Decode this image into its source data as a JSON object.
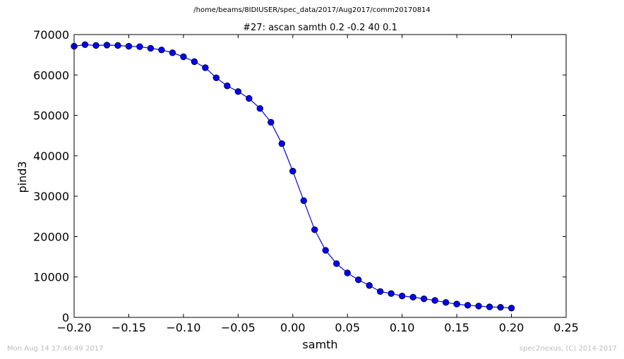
{
  "header": {
    "path": "/home/beams/8IDIUSER/spec_data/2017/Aug2017/comm20170814"
  },
  "footer": {
    "timestamp": "Mon Aug 14 17:46:49 2017",
    "credit": "spec2nexus, (C) 2014-2017"
  },
  "colors": {
    "series": "#0000ff",
    "axes": "#000000",
    "footer_text": "#bdbdbd"
  },
  "chart_data": {
    "type": "line",
    "title": "#27: ascan  samth 0.2 -0.2  40 0.1",
    "xlabel": "samth",
    "ylabel": "pind3",
    "xlim": [
      -0.2,
      0.25
    ],
    "ylim": [
      0,
      70000
    ],
    "grid": false,
    "xticks": [
      "−0.20",
      "−0.15",
      "−0.10",
      "−0.05",
      "0.00",
      "0.05",
      "0.10",
      "0.15",
      "0.20",
      "0.25"
    ],
    "yticks": [
      "0",
      "10000",
      "20000",
      "30000",
      "40000",
      "50000",
      "60000",
      "70000"
    ],
    "series": [
      {
        "marker": "circle",
        "x": [
          -0.2,
          -0.19,
          -0.18,
          -0.17,
          -0.16,
          -0.15,
          -0.14,
          -0.13,
          -0.12,
          -0.11,
          -0.1,
          -0.09,
          -0.08,
          -0.07,
          -0.06,
          -0.05,
          -0.04,
          -0.03,
          -0.02,
          -0.01,
          0.0,
          0.01,
          0.02,
          0.03,
          0.04,
          0.05,
          0.06,
          0.07,
          0.08,
          0.09,
          0.1,
          0.11,
          0.12,
          0.13,
          0.14,
          0.15,
          0.16,
          0.17,
          0.18,
          0.19,
          0.2
        ],
        "y": [
          67100,
          67500,
          67300,
          67400,
          67300,
          67100,
          67000,
          66600,
          66200,
          65500,
          64500,
          63300,
          61800,
          59300,
          57300,
          55900,
          54200,
          51700,
          48300,
          43000,
          36200,
          28900,
          21700,
          16600,
          13300,
          11000,
          9300,
          7900,
          6400,
          5900,
          5300,
          5000,
          4600,
          4200,
          3700,
          3300,
          3000,
          2800,
          2600,
          2500,
          2300
        ]
      }
    ]
  }
}
